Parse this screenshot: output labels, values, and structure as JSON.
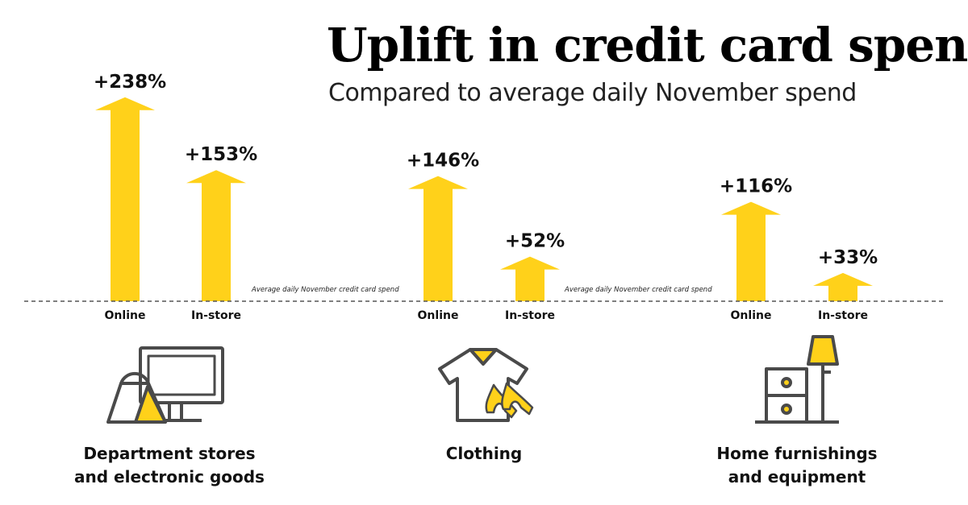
{
  "title": "Uplift in credit card spend",
  "subtitle": "Compared to average daily November spend",
  "baseline_label": "Average daily November credit card spend",
  "colors": {
    "arrow": "#ffd11a",
    "icon_stroke": "#4a4a4a",
    "baseline": "#555555"
  },
  "chart_data": {
    "type": "bar",
    "title": "Uplift in credit card spend",
    "subtitle": "Compared to average daily November spend",
    "unit": "%",
    "categories": [
      "Department stores and electronic goods",
      "Clothing",
      "Home furnishings and equipment"
    ],
    "series": [
      {
        "name": "Online",
        "values": [
          238,
          146,
          116
        ]
      },
      {
        "name": "In-store",
        "values": [
          153,
          52,
          33
        ]
      }
    ],
    "value_labels": {
      "Online": [
        "+238%",
        "+146%",
        "+116%"
      ],
      "In-store": [
        "+153%",
        "+52%",
        "+33%"
      ]
    }
  },
  "categories": [
    {
      "label_line1": "Department stores",
      "label_line2": "and electronic goods",
      "icon": "monitor-shopping-bag-icon"
    },
    {
      "label_line1": "Clothing",
      "label_line2": "",
      "icon": "shirt-shoes-icon"
    },
    {
      "label_line1": "Home furnishings",
      "label_line2": "and equipment",
      "icon": "lamp-drawers-icon"
    }
  ]
}
